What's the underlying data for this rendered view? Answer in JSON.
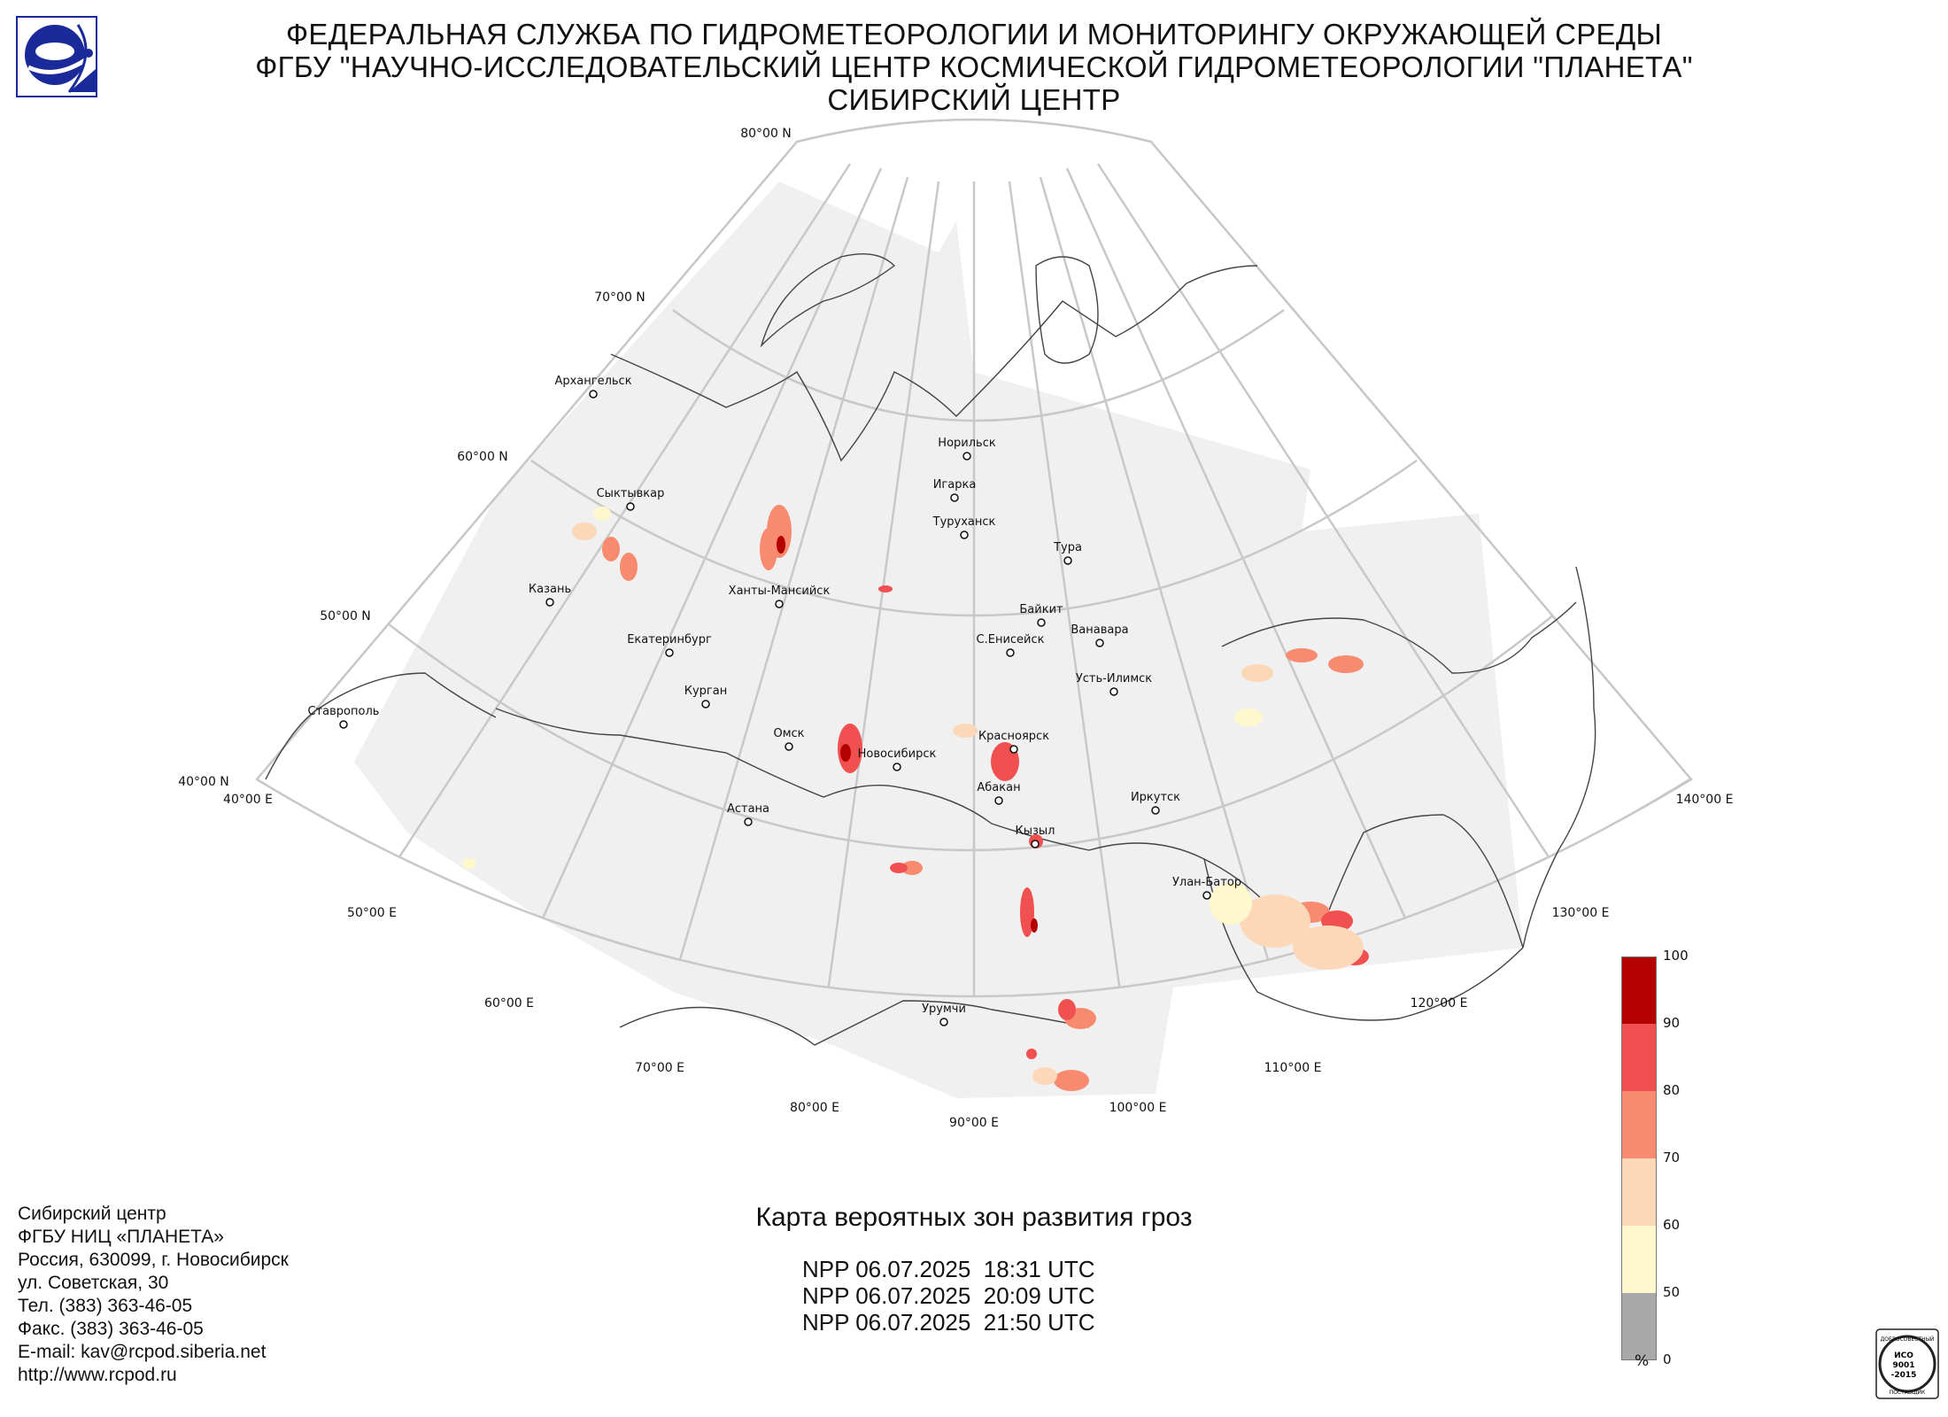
{
  "header": {
    "lines": [
      "ФЕДЕРАЛЬНАЯ СЛУЖБА ПО ГИДРОМЕТЕОРОЛОГИИ И МОНИТОРИНГУ ОКРУЖАЮЩЕЙ СРЕДЫ",
      "ФГБУ \"НАУЧНО-ИССЛЕДОВАТЕЛЬСКИЙ ЦЕНТР КОСМИЧЕСКОЙ ГИДРОМЕТЕОРОЛОГИИ \"ПЛАНЕТА\"",
      "СИБИРСКИЙ ЦЕНТР"
    ],
    "logo_icon": "roshydromet-logo-icon"
  },
  "map": {
    "lat_labels": [
      "80°00 N",
      "70°00 N",
      "60°00 N",
      "50°00 N",
      "40°00 N"
    ],
    "lon_labels": [
      "40°00 E",
      "50°00 E",
      "60°00 E",
      "70°00 E",
      "80°00 E",
      "90°00 E",
      "100°00 E",
      "110°00 E",
      "120°00 E",
      "130°00 E",
      "140°00 E"
    ],
    "cities": [
      "Архангельск",
      "Сыктывкар",
      "Казань",
      "Екатеринбург",
      "Курган",
      "Ставрополь",
      "Ханты-Мансийск",
      "Омск",
      "Новосибирск",
      "Астана",
      "Норильск",
      "Игарка",
      "Туруханск",
      "Тура",
      "Байкит",
      "Ванавара",
      "С.Енисейск",
      "Усть-Илимск",
      "Красноярск",
      "Абакан",
      "Кызыл",
      "Иркутск",
      "Улан-Батор",
      "Урумчи"
    ],
    "colors": {
      "coverage": "#f0f0f0",
      "grid": "#c8c8c8",
      "coast": "#444444"
    }
  },
  "legend": {
    "ticks": [
      "100",
      "90",
      "80",
      "70",
      "60",
      "50",
      "0"
    ],
    "unit": "%",
    "colors": [
      "#b40000",
      "#f05050",
      "#f88a70",
      "#fcd8b8",
      "#fff8cc",
      "#a9a9a9"
    ]
  },
  "footer": {
    "address_lines": [
      "Сибирский центр",
      "ФГБУ НИЦ «ПЛАНЕТА»",
      "Россия, 630099, г. Новосибирск",
      "ул. Советская, 30",
      "Тел. (383) 363-46-05",
      "Факс. (383) 363-46-05",
      "E-mail: kav@rcpod.siberia.net",
      "http://www.rcpod.ru"
    ],
    "map_title": "Карта вероятных зон развития гроз",
    "passes": [
      "NPP 06.07.2025  18:31 UTC",
      "NPP 06.07.2025  20:09 UTC",
      "NPP 06.07.2025  21:50 UTC"
    ],
    "iso_badge": {
      "top_text": "ДОБРОСОВЕСТНЫЙ",
      "line1": "ИСО",
      "line2": "9001",
      "line3": "-2015",
      "bottom_text": "ПОСТАВЩИК"
    }
  }
}
